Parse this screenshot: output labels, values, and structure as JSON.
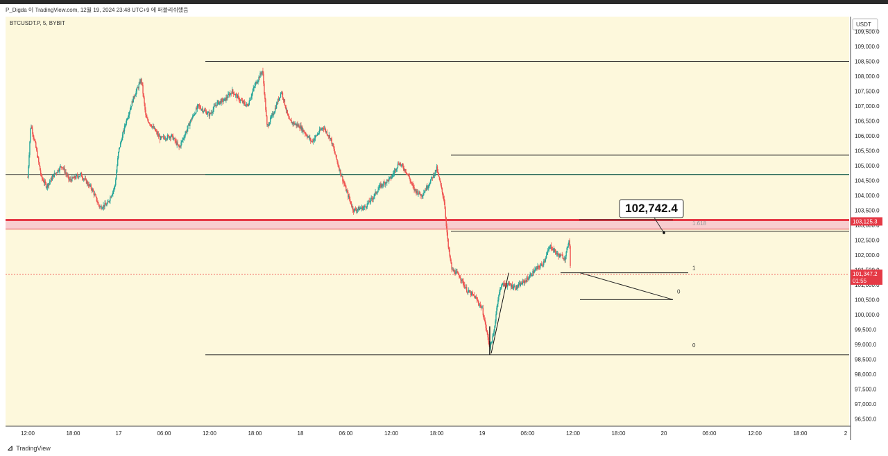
{
  "header": {
    "attribution": "P_Digda 이 TradingView.com, 12월 19, 2024 23:48 UTC+9 에 퍼블리쉬했음"
  },
  "symbol_label": "BTCUSDT.P, 5, BYBIT",
  "watermark": "TradingView",
  "chart_data": {
    "type": "candlestick",
    "symbol": "BTCUSDT.P",
    "interval": "5",
    "exchange": "BYBIT",
    "currency": "USDT",
    "ylim": [
      96250,
      110000
    ],
    "y_ticks": [
      96500,
      97000,
      97500,
      98000,
      98500,
      99000,
      99500,
      100000,
      100500,
      101000,
      101500,
      102000,
      102500,
      103000,
      103500,
      104000,
      104500,
      105000,
      105500,
      106000,
      106500,
      107000,
      107500,
      108000,
      108500,
      109000,
      109500
    ],
    "y_tick_labels": [
      "96,500.0",
      "97,000.0",
      "97,500.0",
      "98,000.0",
      "98,500.0",
      "99,000.0",
      "99,500.0",
      "100,000.0",
      "100,500.0",
      "101,000.0",
      "101,500.0",
      "102,000.0",
      "102,500.0",
      "103,000.0",
      "103,500.0",
      "104,000.0",
      "104,500.0",
      "105,000.0",
      "105,500.0",
      "106,000.0",
      "106,500.0",
      "107,000.0",
      "107,500.0",
      "108,000.0",
      "108,500.0",
      "109,000.0",
      "109,500.0"
    ],
    "x_tick_labels": [
      "12:00",
      "18:00",
      "17",
      "06:00",
      "12:00",
      "18:00",
      "18",
      "06:00",
      "12:00",
      "18:00",
      "19",
      "06:00",
      "12:00",
      "18:00",
      "20",
      "06:00",
      "12:00",
      "18:00",
      "2"
    ],
    "price_path": [
      [
        0,
        104600
      ],
      [
        0.4,
        106400
      ],
      [
        1,
        105700
      ],
      [
        1.8,
        104600
      ],
      [
        2.5,
        104300
      ],
      [
        3.5,
        104700
      ],
      [
        4.5,
        105000
      ],
      [
        5.5,
        104500
      ],
      [
        7,
        104700
      ],
      [
        8.5,
        104200
      ],
      [
        9.5,
        103600
      ],
      [
        10.5,
        103700
      ],
      [
        11.5,
        104300
      ],
      [
        12,
        105500
      ],
      [
        13,
        106500
      ],
      [
        14,
        107300
      ],
      [
        15,
        107900
      ],
      [
        15.6,
        106600
      ],
      [
        16.5,
        106300
      ],
      [
        17.5,
        105900
      ],
      [
        19,
        106000
      ],
      [
        20,
        105600
      ],
      [
        21.5,
        106500
      ],
      [
        22.5,
        107000
      ],
      [
        24,
        106700
      ],
      [
        25,
        107100
      ],
      [
        26,
        107200
      ],
      [
        27,
        107500
      ],
      [
        28,
        107200
      ],
      [
        29,
        107000
      ],
      [
        30,
        107700
      ],
      [
        31,
        108200
      ],
      [
        31.6,
        106300
      ],
      [
        32.5,
        106800
      ],
      [
        33.5,
        107500
      ],
      [
        34.5,
        106500
      ],
      [
        36,
        106300
      ],
      [
        37.5,
        105800
      ],
      [
        39,
        106300
      ],
      [
        40,
        105900
      ],
      [
        41,
        105000
      ],
      [
        42,
        104200
      ],
      [
        43,
        103500
      ],
      [
        44.5,
        103600
      ],
      [
        45.5,
        103900
      ],
      [
        46.5,
        104300
      ],
      [
        48,
        104600
      ],
      [
        49,
        105100
      ],
      [
        50,
        104800
      ],
      [
        51,
        104200
      ],
      [
        52,
        104000
      ],
      [
        53,
        104400
      ],
      [
        54,
        104900
      ],
      [
        55,
        103800
      ],
      [
        55.5,
        102300
      ],
      [
        56,
        101500
      ],
      [
        57,
        101300
      ],
      [
        58,
        100800
      ],
      [
        59,
        100600
      ],
      [
        60,
        100200
      ],
      [
        61,
        98900
      ],
      [
        61.5,
        99300
      ],
      [
        62,
        100400
      ],
      [
        62.5,
        101000
      ],
      [
        63.5,
        101000
      ],
      [
        64.5,
        100900
      ],
      [
        66,
        101200
      ],
      [
        67,
        101500
      ],
      [
        68,
        101700
      ],
      [
        69,
        102300
      ],
      [
        70,
        102000
      ],
      [
        71,
        101900
      ],
      [
        71.5,
        102600
      ],
      [
        71.7,
        101300
      ]
    ],
    "current_price": 101347.2,
    "current_price_label": "101,347.2",
    "countdown": "01:55",
    "zone_price": 103125.3,
    "zone_price_label": "103,125.3",
    "annotation": "102,742.4",
    "fib_labels": [
      "1.618",
      "1",
      "0",
      "0"
    ],
    "horizontal_levels": [
      108500,
      105350,
      104700,
      102800,
      101400,
      100500,
      98650
    ],
    "grid": false
  },
  "colors": {
    "background": "#fdf8dc",
    "up": "#26a69a",
    "down": "#ef5350",
    "candle": "#26a69a",
    "zone": "#f7c6cc",
    "zone_line": "#e53945",
    "price_badge": "#e53945"
  }
}
